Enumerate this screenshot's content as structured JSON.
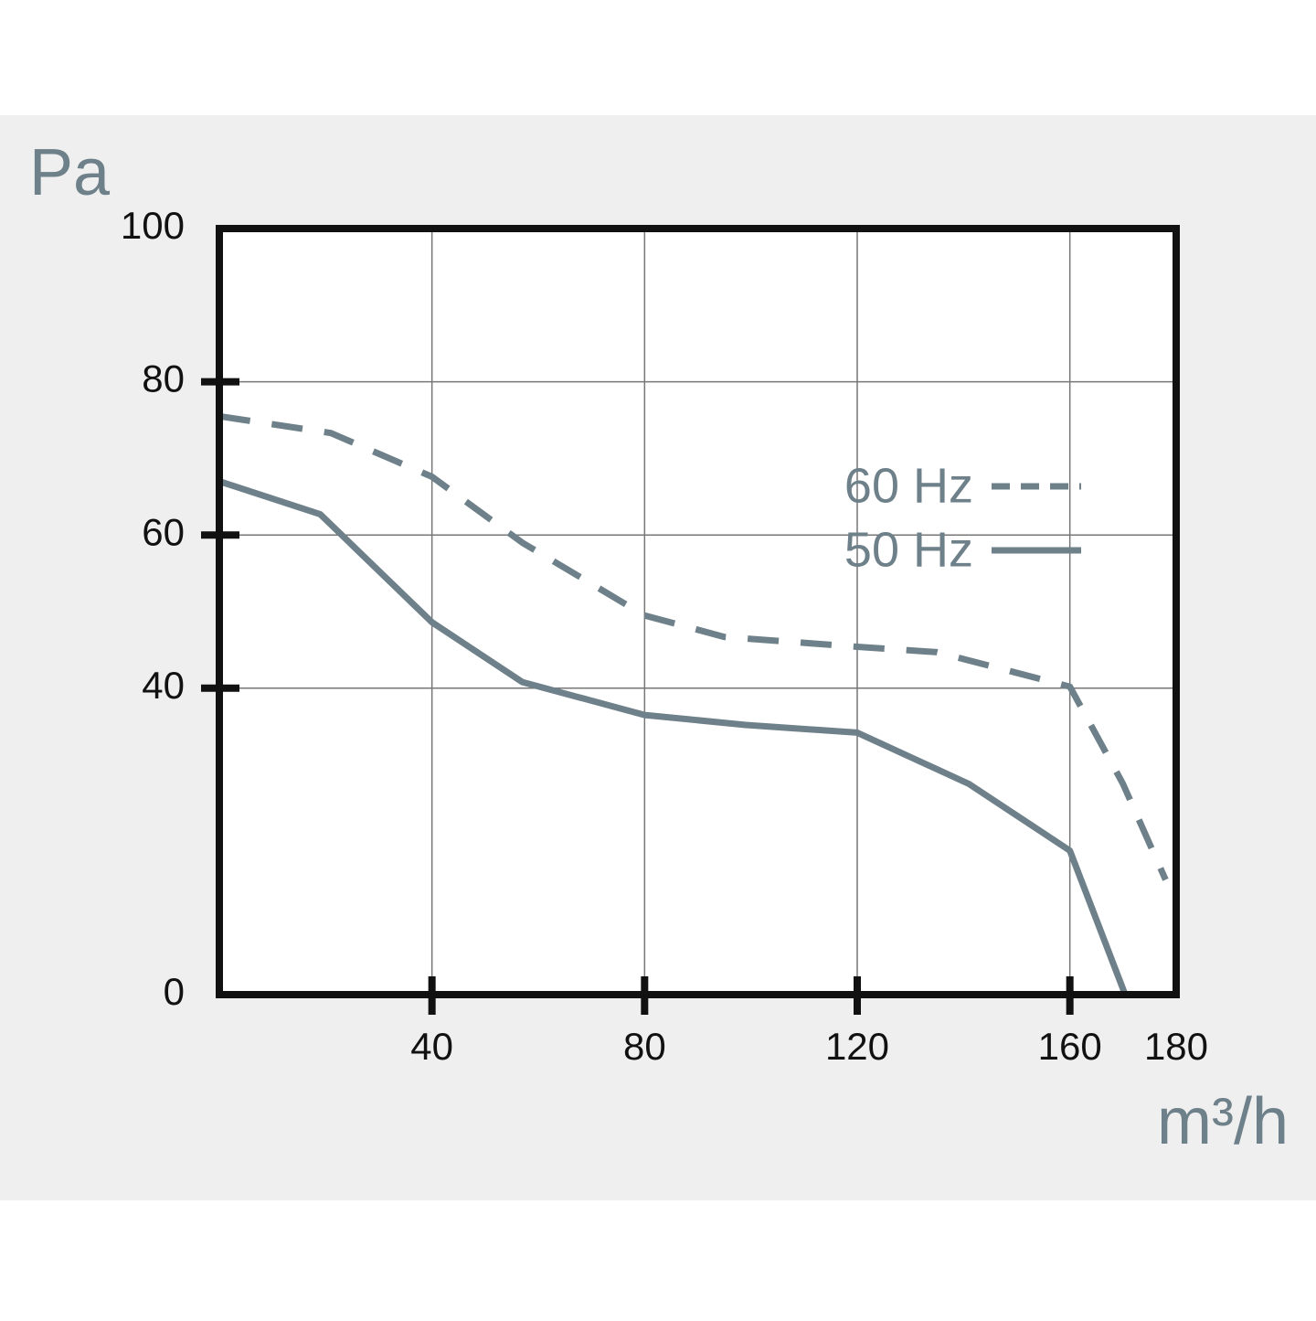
{
  "chart_data": {
    "type": "line",
    "y_label": "Pa",
    "x_label": "m³/h",
    "xlim": [
      0,
      180
    ],
    "xticks": [
      40,
      80,
      120,
      160,
      180
    ],
    "ylim": [
      0,
      100
    ],
    "yticks": [
      0,
      40,
      60,
      80,
      100
    ],
    "grid": true,
    "legend": "upper right",
    "series": [
      {
        "name": "60 Hz",
        "color": "#6e8089",
        "line_style": "dashed",
        "x": [
          0,
          21,
          40,
          57,
          80,
          95,
          120,
          135,
          160,
          170,
          178
        ],
        "values": [
          75.5,
          73.3,
          67.6,
          59,
          49.5,
          46.7,
          45.4,
          44.7,
          40.2,
          27.5,
          15
        ]
      },
      {
        "name": "50 Hz",
        "color": "#6e8089",
        "line_style": "solid",
        "x": [
          0,
          19,
          40,
          57,
          80,
          99,
          120,
          141,
          160,
          170.4
        ],
        "values": [
          67,
          62.7,
          48.6,
          40.8,
          36.5,
          35.2,
          34.2,
          27.5,
          18.8,
          0
        ]
      }
    ]
  }
}
